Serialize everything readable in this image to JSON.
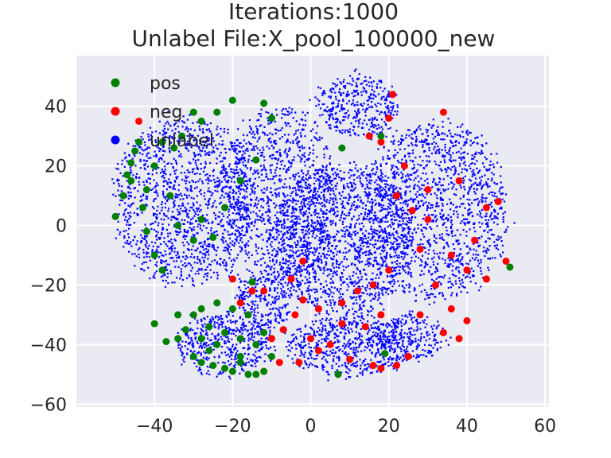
{
  "chart_data": {
    "type": "scatter",
    "title_line1": "Iterations:1000",
    "title_line2": "Unlabel File:X_pool_100000_new",
    "xlabel": "",
    "ylabel": "",
    "xlim": [
      -60,
      61
    ],
    "ylim": [
      -61,
      57
    ],
    "x_ticks": [
      -40,
      -20,
      0,
      20,
      40,
      60
    ],
    "x_tick_labels": [
      "−40",
      "−20",
      "0",
      "20",
      "40",
      "60"
    ],
    "y_ticks": [
      -60,
      -40,
      -20,
      0,
      20,
      40
    ],
    "y_tick_labels": [
      "−60",
      "−40",
      "−20",
      "0",
      "20",
      "40"
    ],
    "grid": true,
    "background": "#eaeaf2",
    "legend_position": "top-left",
    "legend": [
      {
        "label": "pos",
        "color": "#008000"
      },
      {
        "label": "neg",
        "color": "#ff0000"
      },
      {
        "label": "unlabel",
        "color": "#0000ff"
      }
    ],
    "series": [
      {
        "name": "unlabel",
        "color": "#0000ff",
        "marker": "dot",
        "regions": [
          {
            "cx": -32,
            "cy": 8,
            "rx": 18,
            "ry": 28,
            "n": 1400
          },
          {
            "cx": -22,
            "cy": -40,
            "rx": 12,
            "ry": 10,
            "n": 450
          },
          {
            "cx": -12,
            "cy": -25,
            "rx": 7,
            "ry": 10,
            "n": 260
          },
          {
            "cx": -8,
            "cy": 10,
            "rx": 14,
            "ry": 30,
            "n": 1000
          },
          {
            "cx": 12,
            "cy": 40,
            "rx": 10,
            "ry": 10,
            "n": 380
          },
          {
            "cx": 8,
            "cy": -5,
            "rx": 18,
            "ry": 25,
            "n": 1500
          },
          {
            "cx": 10,
            "cy": -40,
            "rx": 16,
            "ry": 10,
            "n": 600
          },
          {
            "cx": 32,
            "cy": 5,
            "rx": 18,
            "ry": 30,
            "n": 1400
          },
          {
            "cx": 25,
            "cy": -38,
            "rx": 9,
            "ry": 8,
            "n": 250
          }
        ]
      },
      {
        "name": "neg",
        "color": "#ff0000",
        "marker": "circle",
        "points": [
          [
            -44,
            35
          ],
          [
            21,
            44
          ],
          [
            34,
            38
          ],
          [
            20,
            36
          ],
          [
            22,
            10
          ],
          [
            18,
            28
          ],
          [
            26,
            5
          ],
          [
            30,
            2
          ],
          [
            28,
            -8
          ],
          [
            36,
            -10
          ],
          [
            40,
            -15
          ],
          [
            45,
            6
          ],
          [
            48,
            8
          ],
          [
            38,
            15
          ],
          [
            42,
            -5
          ],
          [
            50,
            -12
          ],
          [
            32,
            -20
          ],
          [
            36,
            -28
          ],
          [
            40,
            -32
          ],
          [
            38,
            -38
          ],
          [
            25,
            -44
          ],
          [
            22,
            -47
          ],
          [
            18,
            -48
          ],
          [
            16,
            -47
          ],
          [
            10,
            -45
          ],
          [
            5,
            -40
          ],
          [
            2,
            -42
          ],
          [
            -3,
            -46
          ],
          [
            -8,
            -46
          ],
          [
            -7,
            -35
          ],
          [
            -10,
            -38
          ],
          [
            -15,
            -22
          ],
          [
            -18,
            -26
          ],
          [
            -12,
            -22
          ],
          [
            -5,
            -18
          ],
          [
            -2,
            -25
          ],
          [
            2,
            -28
          ],
          [
            8,
            -26
          ],
          [
            12,
            -22
          ],
          [
            16,
            -20
          ],
          [
            20,
            -15
          ],
          [
            18,
            -30
          ],
          [
            14,
            -34
          ],
          [
            8,
            -33
          ],
          [
            -4,
            -30
          ],
          [
            0,
            -38
          ],
          [
            28,
            -30
          ],
          [
            30,
            12
          ],
          [
            24,
            20
          ],
          [
            15,
            30
          ],
          [
            -2,
            -12
          ],
          [
            -20,
            -18
          ],
          [
            34,
            -36
          ],
          [
            45,
            -18
          ]
        ]
      },
      {
        "name": "pos",
        "color": "#008000",
        "marker": "circle",
        "points": [
          [
            -50,
            3
          ],
          [
            -48,
            10
          ],
          [
            -47,
            17
          ],
          [
            -46,
            21
          ],
          [
            -45,
            25
          ],
          [
            -44,
            28
          ],
          [
            -46,
            15
          ],
          [
            -43,
            6
          ],
          [
            -40,
            20
          ],
          [
            -38,
            28
          ],
          [
            -35,
            26
          ],
          [
            -42,
            12
          ],
          [
            -36,
            10
          ],
          [
            -33,
            30
          ],
          [
            -30,
            38
          ],
          [
            -24,
            38
          ],
          [
            -20,
            42
          ],
          [
            -12,
            41
          ],
          [
            -10,
            36
          ],
          [
            -28,
            35
          ],
          [
            -40,
            -33
          ],
          [
            -37,
            -39
          ],
          [
            -34,
            -30
          ],
          [
            -30,
            -44
          ],
          [
            -28,
            -46
          ],
          [
            -25,
            -47
          ],
          [
            -22,
            -48
          ],
          [
            -20,
            -49
          ],
          [
            -16,
            -50
          ],
          [
            -14,
            -50
          ],
          [
            -12,
            -49
          ],
          [
            -18,
            -44
          ],
          [
            -24,
            -40
          ],
          [
            -28,
            -38
          ],
          [
            -32,
            -35
          ],
          [
            -34,
            -38
          ],
          [
            -26,
            -34
          ],
          [
            -22,
            -36
          ],
          [
            -18,
            -38
          ],
          [
            -14,
            -40
          ],
          [
            -16,
            -30
          ],
          [
            -20,
            -28
          ],
          [
            -24,
            -26
          ],
          [
            -28,
            -28
          ],
          [
            -30,
            -30
          ],
          [
            -26,
            -42
          ],
          [
            -18,
            -46
          ],
          [
            -10,
            -44
          ],
          [
            -12,
            -36
          ],
          [
            -15,
            -19
          ],
          [
            -25,
            -4
          ],
          [
            -30,
            -5
          ],
          [
            -34,
            0
          ],
          [
            -40,
            -10
          ],
          [
            -28,
            2
          ],
          [
            -22,
            6
          ],
          [
            -18,
            15
          ],
          [
            -14,
            22
          ],
          [
            8,
            26
          ],
          [
            18,
            30
          ],
          [
            19,
            -43
          ],
          [
            7,
            -50
          ],
          [
            51,
            -14
          ],
          [
            -38,
            -15
          ],
          [
            -42,
            -2
          ]
        ]
      }
    ]
  }
}
